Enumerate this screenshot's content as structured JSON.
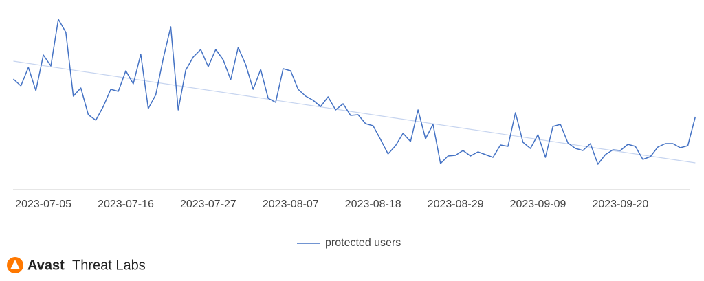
{
  "chart_data": {
    "type": "line",
    "categories": [
      null,
      null,
      null,
      null,
      "2023-07-05",
      null,
      null,
      null,
      null,
      null,
      null,
      null,
      null,
      null,
      null,
      "2023-07-16",
      null,
      null,
      null,
      null,
      null,
      null,
      null,
      null,
      null,
      null,
      "2023-07-27",
      null,
      null,
      null,
      null,
      null,
      null,
      null,
      null,
      null,
      null,
      "2023-08-07",
      null,
      null,
      null,
      null,
      null,
      null,
      null,
      null,
      null,
      null,
      "2023-08-18",
      null,
      null,
      null,
      null,
      null,
      null,
      null,
      null,
      null,
      null,
      "2023-08-29",
      null,
      null,
      null,
      null,
      null,
      null,
      null,
      null,
      null,
      null,
      "2023-09-09",
      null,
      null,
      null,
      null,
      null,
      null,
      null,
      null,
      null,
      null,
      "2023-09-20",
      null,
      null,
      null,
      null,
      null,
      null,
      null,
      null,
      null,
      null
    ],
    "series": [
      {
        "name": "protected users",
        "color": "#4472c4",
        "values": [
          161,
          151,
          178,
          144,
          196,
          180,
          248,
          229,
          136,
          148,
          109,
          101,
          121,
          146,
          143,
          173,
          154,
          197,
          118,
          138,
          191,
          237,
          116,
          174,
          193,
          204,
          179,
          204,
          189,
          160,
          207,
          182,
          146,
          175,
          133,
          127,
          176,
          173,
          146,
          136,
          130,
          121,
          135,
          116,
          125,
          108,
          109,
          96,
          93,
          73,
          52,
          64,
          82,
          70,
          116,
          74,
          95,
          38,
          49,
          50,
          57,
          49,
          55,
          51,
          47,
          65,
          63,
          112,
          69,
          60,
          80,
          47,
          92,
          95,
          68,
          60,
          57,
          67,
          37,
          51,
          58,
          57,
          66,
          63,
          44,
          48,
          62,
          67,
          67,
          61,
          64,
          106
        ]
      }
    ],
    "trend": {
      "values": [
        187,
        39
      ],
      "color": "#c6d4ef"
    },
    "ylim": [
      0,
      260
    ],
    "legend": "bottom"
  },
  "branding": {
    "brand": "Avast",
    "product": "Threat Labs"
  }
}
